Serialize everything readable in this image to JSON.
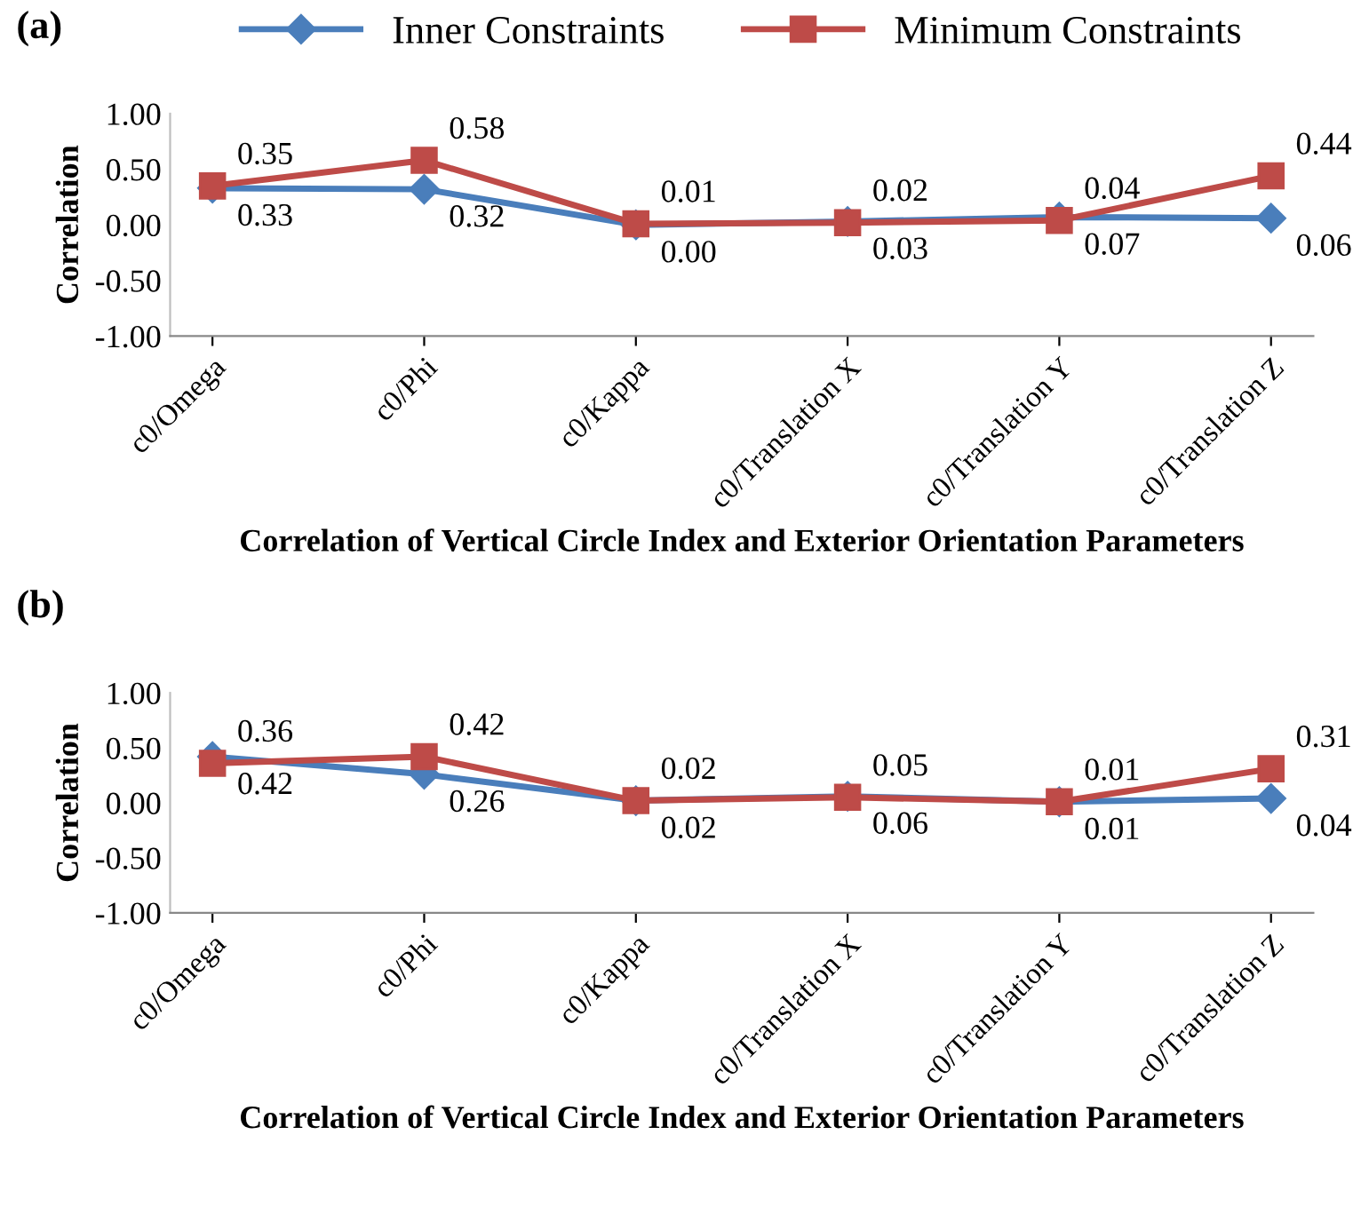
{
  "chart_data": [
    {
      "type": "line",
      "title": "(a)",
      "xlabel": "Correlation of Vertical Circle Index and Exterior Orientation Parameters",
      "ylabel": "Correlation",
      "categories": [
        "c0/Omega",
        "c0/Phi",
        "c0/Kappa",
        "c0/Translation X",
        "c0/Translation Y",
        "c0/Translation Z"
      ],
      "series": [
        {
          "name": "Inner Constraints",
          "color": "#4a7ebb",
          "marker": "diamond",
          "values": [
            0.33,
            0.32,
            0.0,
            0.03,
            0.07,
            0.06
          ],
          "value_labels": [
            "0.33",
            "0.32",
            "0.00",
            "0.03",
            "0.07",
            "0.06"
          ]
        },
        {
          "name": "Minimum Constraints",
          "color": "#be4b48",
          "marker": "square",
          "values": [
            0.35,
            0.58,
            0.01,
            0.02,
            0.04,
            0.44
          ],
          "value_labels": [
            "0.35",
            "0.58",
            "0.01",
            "0.02",
            "0.04",
            "0.44"
          ]
        }
      ],
      "ylim": [
        -1,
        1
      ],
      "yticks": [
        {
          "value": -1,
          "label": "-1.00"
        },
        {
          "value": -0.5,
          "label": "-0.50"
        },
        {
          "value": 0,
          "label": "0.00"
        },
        {
          "value": 0.5,
          "label": "0.50"
        },
        {
          "value": 1,
          "label": "1.00"
        }
      ],
      "grid": false,
      "legend": "top"
    },
    {
      "type": "line",
      "title": "(b)",
      "xlabel": "Correlation of Vertical Circle Index and Exterior Orientation Parameters",
      "ylabel": "Correlation",
      "categories": [
        "c0/Omega",
        "c0/Phi",
        "c0/Kappa",
        "c0/Translation X",
        "c0/Translation Y",
        "c0/Translation Z"
      ],
      "series": [
        {
          "color": "#4a7ebb",
          "marker": "diamond",
          "values": [
            0.42,
            0.26,
            0.02,
            0.06,
            0.01,
            0.04
          ],
          "value_labels": [
            "0.42",
            "0.26",
            "0.02",
            "0.06",
            "0.01",
            "0.04"
          ]
        },
        {
          "color": "#be4b48",
          "marker": "square",
          "values": [
            0.36,
            0.42,
            0.02,
            0.05,
            0.01,
            0.31
          ],
          "value_labels": [
            "0.36",
            "0.42",
            "0.02",
            "0.05",
            "0.01",
            "0.31"
          ]
        }
      ],
      "ylim": [
        -1,
        1
      ],
      "yticks": [
        {
          "value": -1,
          "label": "-1.00"
        },
        {
          "value": -0.5,
          "label": "-0.50"
        },
        {
          "value": 0,
          "label": "0.00"
        },
        {
          "value": 0.5,
          "label": "0.50"
        },
        {
          "value": 1,
          "label": "1.00"
        }
      ],
      "grid": false
    }
  ]
}
